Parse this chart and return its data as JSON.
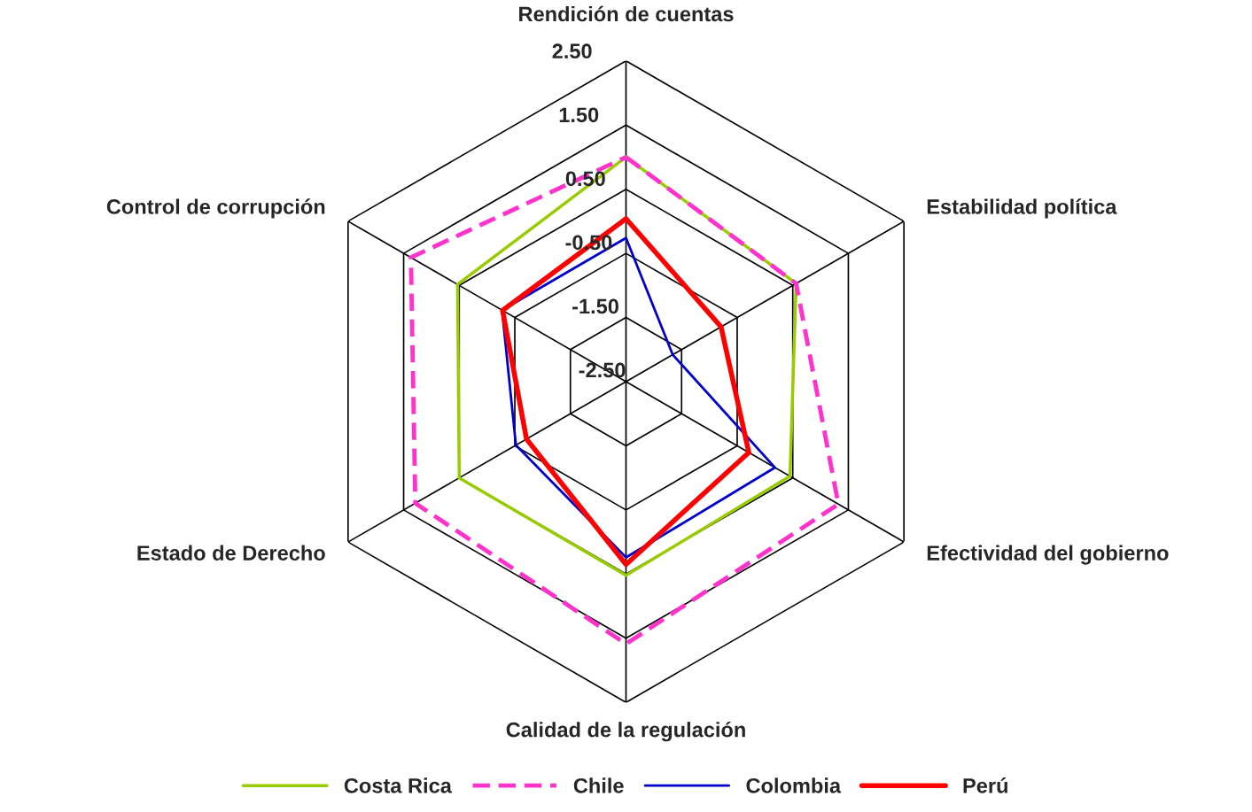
{
  "chart_data": {
    "type": "radar",
    "categories": [
      "Rendición de cuentas",
      "Estabilidad política",
      "Efectividad del gobierno",
      "Calidad de la regulación",
      "Estado de Derecho",
      "Control de corrupción"
    ],
    "ylim": [
      -2.5,
      2.5
    ],
    "yticks": [
      {
        "value": -2.5,
        "label": "-2.50"
      },
      {
        "value": -1.5,
        "label": "-1.50"
      },
      {
        "value": -0.5,
        "label": "-0.50"
      },
      {
        "value": 0.5,
        "label": "0.50"
      },
      {
        "value": 1.5,
        "label": "1.50"
      },
      {
        "value": 2.5,
        "label": "2.50"
      }
    ],
    "grid": true,
    "legend": "bottom",
    "series": [
      {
        "name": "Costa Rica",
        "color": "#99cc00",
        "line_style": "solid",
        "values": [
          1.0,
          0.56,
          0.45,
          0.52,
          0.5,
          0.53
        ]
      },
      {
        "name": "Chile",
        "color": "#ff33cc",
        "line_style": "dashed",
        "values": [
          1.0,
          0.56,
          1.32,
          1.59,
          1.29,
          1.37
        ]
      },
      {
        "name": "Colombia",
        "color": "#0000cc",
        "line_style": "solid",
        "values": [
          -0.26,
          -1.66,
          0.18,
          0.24,
          -0.52,
          -0.27
        ]
      },
      {
        "name": "Perú",
        "color": "#ff0000",
        "line_style": "solid",
        "values": [
          0.04,
          -0.79,
          -0.29,
          0.35,
          -0.71,
          -0.28
        ]
      }
    ]
  }
}
